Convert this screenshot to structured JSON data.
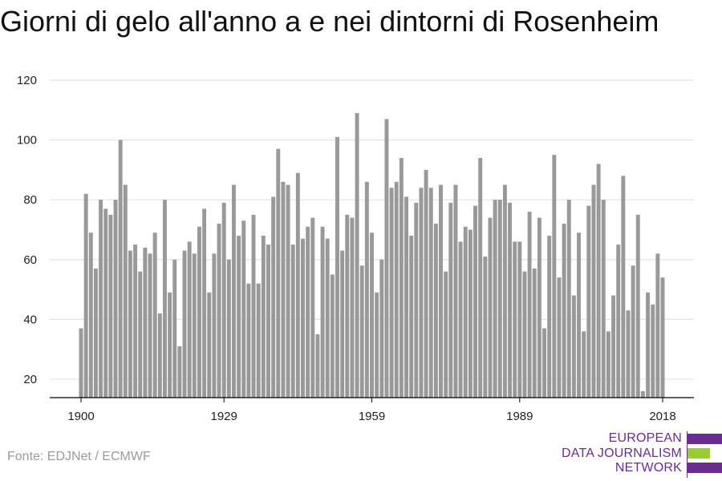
{
  "title": "Giorni di gelo all'anno a e nei dintorni di Rosenheim",
  "source": "Fonte: EDJNet / ECMWF",
  "logo": {
    "lines": [
      "EUROPEAN",
      "DATA JOURNALISM",
      "NETWORK"
    ],
    "colors": {
      "purple": "#6b2c91",
      "green": "#9acd32"
    }
  },
  "colors": {
    "bar": "#999999",
    "grid": "#dddddd",
    "axis": "#000000"
  },
  "chart_data": {
    "type": "bar",
    "title": "Giorni di gelo all'anno a e nei dintorni di Rosenheim",
    "xlabel": "",
    "ylabel": "",
    "x_range": [
      1900,
      2018
    ],
    "x_ticks": [
      "1900",
      "1929",
      "1959",
      "1989",
      "2018"
    ],
    "ylim": [
      13,
      120
    ],
    "y_ticks": [
      "20",
      "40",
      "60",
      "80",
      "100",
      "120"
    ],
    "grid": true,
    "years": [
      1900,
      1901,
      1902,
      1903,
      1904,
      1905,
      1906,
      1907,
      1908,
      1909,
      1910,
      1911,
      1912,
      1913,
      1914,
      1915,
      1916,
      1917,
      1918,
      1919,
      1920,
      1921,
      1922,
      1923,
      1924,
      1925,
      1926,
      1927,
      1928,
      1929,
      1930,
      1931,
      1932,
      1933,
      1934,
      1935,
      1936,
      1937,
      1938,
      1939,
      1940,
      1941,
      1942,
      1943,
      1944,
      1945,
      1946,
      1947,
      1948,
      1949,
      1950,
      1951,
      1952,
      1953,
      1954,
      1955,
      1956,
      1957,
      1958,
      1959,
      1960,
      1961,
      1962,
      1963,
      1964,
      1965,
      1966,
      1967,
      1968,
      1969,
      1970,
      1971,
      1972,
      1973,
      1974,
      1975,
      1976,
      1977,
      1978,
      1979,
      1980,
      1981,
      1982,
      1983,
      1984,
      1985,
      1986,
      1987,
      1988,
      1989,
      1990,
      1991,
      1992,
      1993,
      1994,
      1995,
      1996,
      1997,
      1998,
      1999,
      2000,
      2001,
      2002,
      2003,
      2004,
      2005,
      2006,
      2007,
      2008,
      2009,
      2010,
      2011,
      2012,
      2013,
      2014,
      2015,
      2016,
      2017,
      2018
    ],
    "values": [
      37,
      82,
      69,
      57,
      80,
      77,
      75,
      80,
      100,
      85,
      63,
      65,
      56,
      64,
      62,
      69,
      42,
      80,
      49,
      60,
      31,
      63,
      66,
      62,
      71,
      77,
      49,
      62,
      72,
      79,
      60,
      85,
      68,
      73,
      52,
      75,
      52,
      68,
      65,
      81,
      97,
      86,
      85,
      65,
      89,
      67,
      71,
      74,
      35,
      71,
      67,
      55,
      101,
      63,
      75,
      74,
      109,
      58,
      86,
      69,
      49,
      60,
      107,
      84,
      86,
      94,
      81,
      68,
      79,
      84,
      90,
      84,
      72,
      85,
      56,
      79,
      85,
      66,
      71,
      70,
      78,
      94,
      61,
      74,
      80,
      80,
      85,
      79,
      66,
      66,
      56,
      76,
      57,
      74,
      37,
      68,
      95,
      54,
      72,
      80,
      48,
      69,
      36,
      78,
      85,
      92,
      80,
      36,
      48,
      65,
      88,
      43,
      58,
      75,
      16,
      49,
      45,
      62,
      54
    ]
  }
}
